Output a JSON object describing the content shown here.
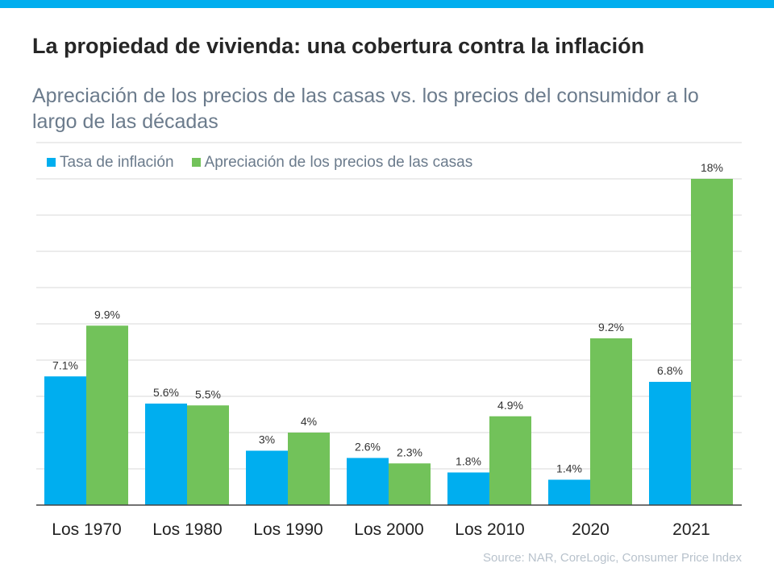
{
  "title": "La propiedad de vivienda: una cobertura contra la inflación",
  "subtitle": "Apreciación de los precios de las casas vs. los precios del consumidor a lo largo de las décadas",
  "source": "Source: NAR, CoreLogic, Consumer Price Index",
  "chart_data": {
    "type": "bar",
    "categories": [
      "Los 1970",
      "Los 1980",
      "Los 1990",
      "Los 2000",
      "Los 2010",
      "2020",
      "2021"
    ],
    "series": [
      {
        "name": "Tasa de inflación",
        "color": "#00aeef",
        "values": [
          7.1,
          5.6,
          3,
          2.6,
          1.8,
          1.4,
          6.8
        ],
        "labels": [
          "7.1%",
          "5.6%",
          "3%",
          "2.6%",
          "1.8%",
          "1.4%",
          "6.8%"
        ]
      },
      {
        "name": "Apreciación de los precios de las casas",
        "color": "#72c25a",
        "values": [
          9.9,
          5.5,
          4,
          2.3,
          4.9,
          9.2,
          18
        ],
        "labels": [
          "9.9%",
          "5.5%",
          "4%",
          "2.3%",
          "4.9%",
          "9.2%",
          "18%"
        ]
      }
    ],
    "ylim": [
      0,
      20
    ],
    "grid": true,
    "legend": "top-left"
  }
}
